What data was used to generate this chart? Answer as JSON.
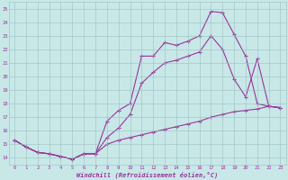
{
  "xlabel": "Windchill (Refroidissement éolien,°C)",
  "x_ticks": [
    0,
    1,
    2,
    3,
    4,
    5,
    6,
    7,
    8,
    9,
    10,
    11,
    12,
    13,
    14,
    15,
    16,
    17,
    18,
    19,
    20,
    21,
    22,
    23
  ],
  "ylim": [
    13.5,
    25.5
  ],
  "xlim": [
    -0.5,
    23.5
  ],
  "yticks": [
    14,
    15,
    16,
    17,
    18,
    19,
    20,
    21,
    22,
    23,
    24,
    25
  ],
  "line_color": "#993399",
  "bg_color": "#c8e8e8",
  "grid_color": "#9bbfbf",
  "line1_x": [
    0,
    1,
    2,
    3,
    4,
    5,
    6,
    7,
    8,
    9,
    10,
    11,
    12,
    13,
    14,
    15,
    16,
    17,
    18,
    19,
    20,
    21,
    22,
    23
  ],
  "line1_y": [
    15.3,
    14.8,
    14.4,
    14.3,
    14.1,
    13.9,
    14.3,
    14.3,
    16.7,
    17.5,
    18.0,
    21.5,
    21.5,
    22.5,
    22.3,
    22.6,
    23.0,
    24.8,
    24.7,
    23.1,
    21.5,
    18.0,
    17.8,
    17.7
  ],
  "line2_x": [
    0,
    1,
    2,
    3,
    4,
    5,
    6,
    7,
    8,
    9,
    10,
    11,
    12,
    13,
    14,
    15,
    16,
    17,
    18,
    19,
    20,
    21,
    22,
    23
  ],
  "line2_y": [
    15.3,
    14.8,
    14.4,
    14.3,
    14.1,
    13.9,
    14.3,
    14.3,
    15.5,
    16.2,
    17.2,
    19.5,
    20.3,
    21.0,
    21.2,
    21.5,
    21.8,
    23.0,
    22.0,
    19.8,
    18.5,
    21.3,
    17.8,
    17.7
  ],
  "line3_x": [
    0,
    1,
    2,
    3,
    4,
    5,
    6,
    7,
    8,
    9,
    10,
    11,
    12,
    13,
    14,
    15,
    16,
    17,
    18,
    19,
    20,
    21,
    22,
    23
  ],
  "line3_y": [
    15.3,
    14.8,
    14.4,
    14.3,
    14.1,
    13.9,
    14.3,
    14.3,
    15.0,
    15.3,
    15.5,
    15.7,
    15.9,
    16.1,
    16.3,
    16.5,
    16.7,
    17.0,
    17.2,
    17.4,
    17.5,
    17.6,
    17.8,
    17.7
  ],
  "marker": "+",
  "lw": 0.8,
  "ms": 2.5
}
